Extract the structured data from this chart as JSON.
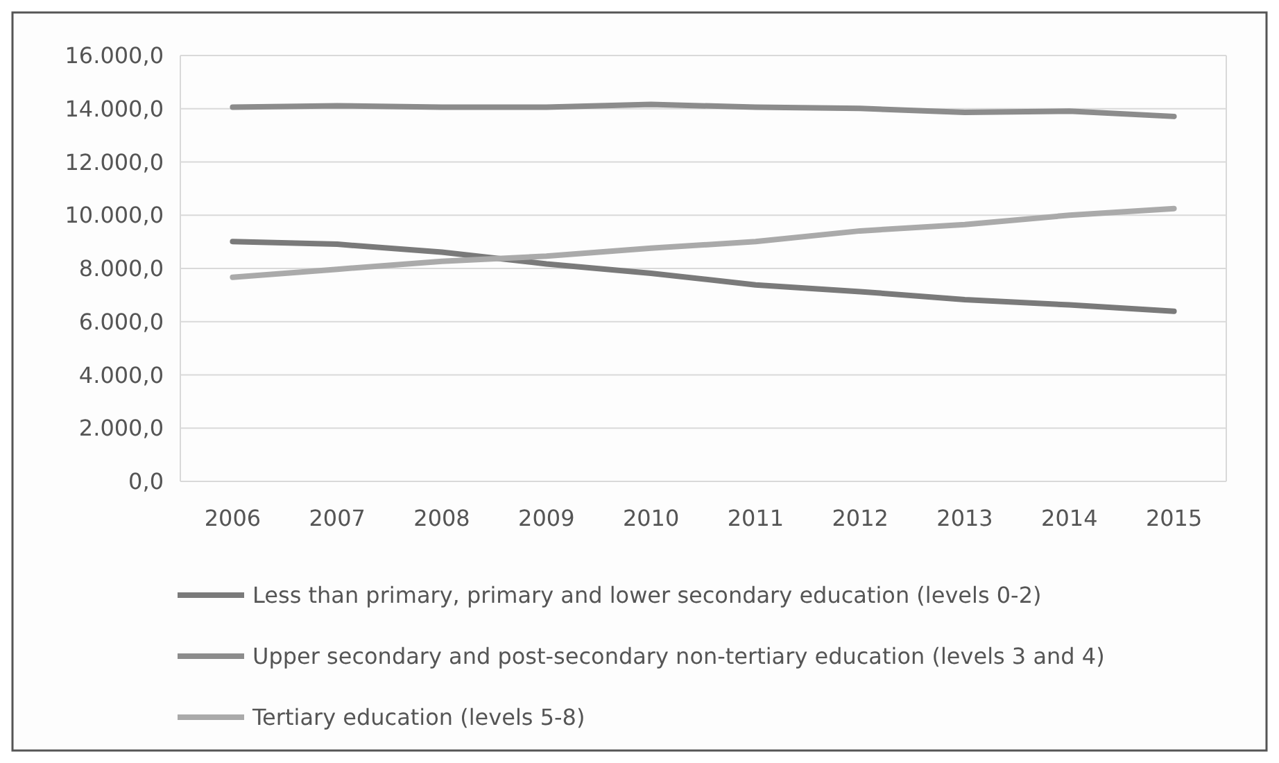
{
  "chart_data": {
    "type": "line",
    "categories": [
      "2006",
      "2007",
      "2008",
      "2009",
      "2010",
      "2011",
      "2012",
      "2013",
      "2014",
      "2015"
    ],
    "series": [
      {
        "name": "Less than primary, primary and lower secondary education (levels 0-2)",
        "color": "#7a7a7a",
        "values": [
          9010,
          8910,
          8610,
          8170,
          7820,
          7380,
          7130,
          6830,
          6630,
          6390
        ]
      },
      {
        "name": "Upper secondary and post-secondary non-tertiary education (levels 3 and 4)",
        "color": "#8c8c8c",
        "values": [
          14060,
          14110,
          14060,
          14060,
          14160,
          14060,
          14010,
          13860,
          13910,
          13710
        ]
      },
      {
        "name": "Tertiary education (levels 5-8)",
        "color": "#aaaaaa",
        "values": [
          7670,
          7970,
          8270,
          8460,
          8760,
          9010,
          9410,
          9650,
          10000,
          10250
        ]
      }
    ],
    "ylim": [
      0,
      16000
    ],
    "yticks": [
      {
        "value": 0,
        "label": "0,0"
      },
      {
        "value": 2000,
        "label": "2.000,0"
      },
      {
        "value": 4000,
        "label": "4.000,0"
      },
      {
        "value": 6000,
        "label": "6.000,0"
      },
      {
        "value": 8000,
        "label": "8.000,0"
      },
      {
        "value": 10000,
        "label": "10.000,0"
      },
      {
        "value": 12000,
        "label": "12.000,0"
      },
      {
        "value": 14000,
        "label": "14.000,0"
      },
      {
        "value": 16000,
        "label": "16.000,0"
      }
    ],
    "grid": "y",
    "legend": "bottom",
    "marker": "none",
    "line_style": "solid"
  }
}
